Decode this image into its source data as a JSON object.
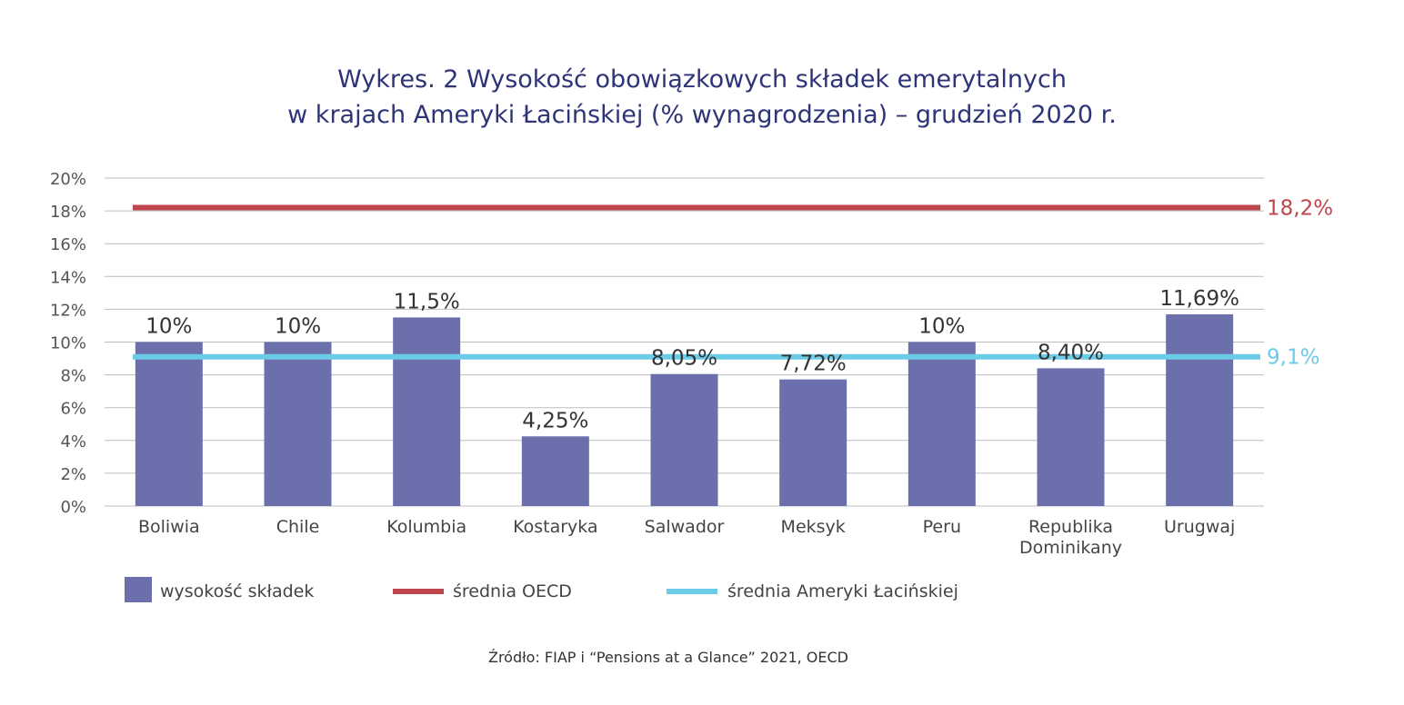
{
  "title_line1": "Wykres. 2 Wysokość obowiązkowych składek emerytalnych",
  "title_line2": "w krajach Ameryki Łacińskiej (% wynagrodzenia) – grudzień 2020 r.",
  "source": "Źródło: FIAP i “Pensions at a Glance” 2021, OECD",
  "colors": {
    "bar": "#6b70ac",
    "oecd": "#c0464e",
    "latam": "#6ccbe6",
    "grid": "#bdbdbd",
    "title": "#2d3477"
  },
  "chart_data": {
    "type": "bar",
    "ylim": [
      0,
      20
    ],
    "yticks": [
      "0%",
      "2%",
      "4%",
      "6%",
      "8%",
      "10%",
      "12%",
      "14%",
      "16%",
      "18%",
      "20%"
    ],
    "grid": true,
    "legend_position": "bottom",
    "categories": [
      [
        "Boliwia"
      ],
      [
        "Chile"
      ],
      [
        "Kolumbia"
      ],
      [
        "Kostaryka"
      ],
      [
        "Salwador"
      ],
      [
        "Meksyk"
      ],
      [
        "Peru"
      ],
      [
        "Republika",
        "Dominikany"
      ],
      [
        "Urugwaj"
      ]
    ],
    "series": [
      {
        "name": "wysokość składek",
        "values": [
          10,
          10,
          11.5,
          4.25,
          8.05,
          7.72,
          10,
          8.4,
          11.69
        ],
        "labels": [
          "10%",
          "10%",
          "11,5%",
          "4,25%",
          "8,05%",
          "7,72%",
          "10%",
          "8,40%",
          "11,69%"
        ]
      }
    ],
    "reference_lines": [
      {
        "name": "średnia OECD",
        "value": 18.2,
        "label": "18,2%"
      },
      {
        "name": "średnia Ameryki Łacińskiej",
        "value": 9.1,
        "label": "9,1%"
      }
    ]
  }
}
